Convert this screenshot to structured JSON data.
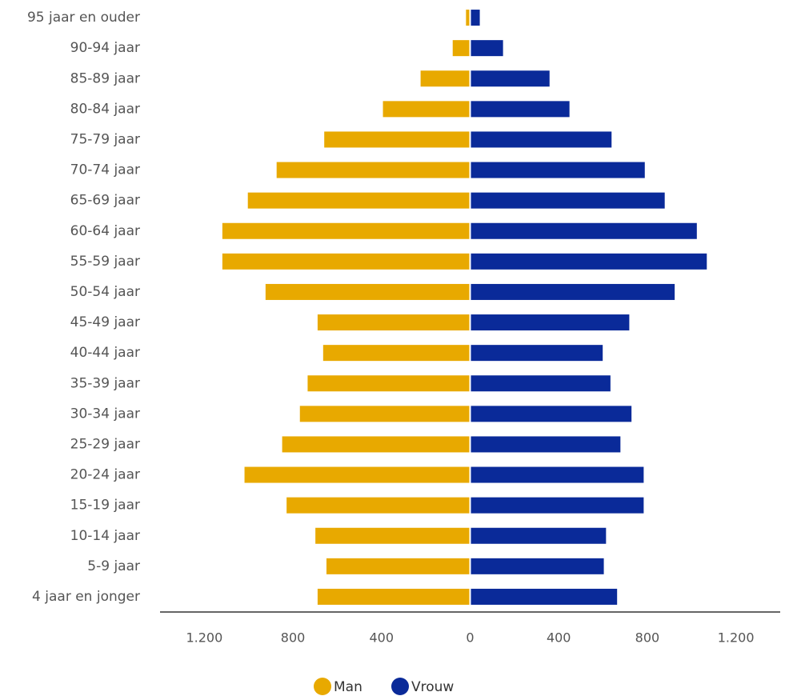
{
  "chart_data": {
    "type": "bar",
    "categories": [
      "95 jaar en ouder",
      "90-94 jaar",
      "85-89 jaar",
      "80-84 jaar",
      "75-79 jaar",
      "70-74 jaar",
      "65-69 jaar",
      "60-64 jaar",
      "55-59 jaar",
      "50-54 jaar",
      "45-49 jaar",
      "40-44 jaar",
      "35-39 jaar",
      "30-34 jaar",
      "25-29 jaar",
      "20-24 jaar",
      "15-19 jaar",
      "10-14 jaar",
      "5-9 jaar",
      "4 jaar en jonger"
    ],
    "series": [
      {
        "name": "Man",
        "color": "#e8a900",
        "values": [
          15,
          75,
          220,
          390,
          655,
          870,
          1000,
          1115,
          1115,
          920,
          685,
          660,
          730,
          765,
          845,
          1015,
          825,
          695,
          645,
          685
        ]
      },
      {
        "name": "Vrouw",
        "color": "#0a2a99",
        "values": [
          40,
          145,
          355,
          445,
          635,
          785,
          875,
          1020,
          1065,
          920,
          715,
          595,
          630,
          725,
          675,
          780,
          780,
          610,
          600,
          660
        ]
      }
    ],
    "xlim": [
      -1400,
      1400
    ],
    "xticks": [
      {
        "value": -1200,
        "label": "1.200"
      },
      {
        "value": -800,
        "label": "800"
      },
      {
        "value": -400,
        "label": "400"
      },
      0,
      400,
      800,
      {
        "value": 1200,
        "label": "1.200"
      }
    ]
  }
}
